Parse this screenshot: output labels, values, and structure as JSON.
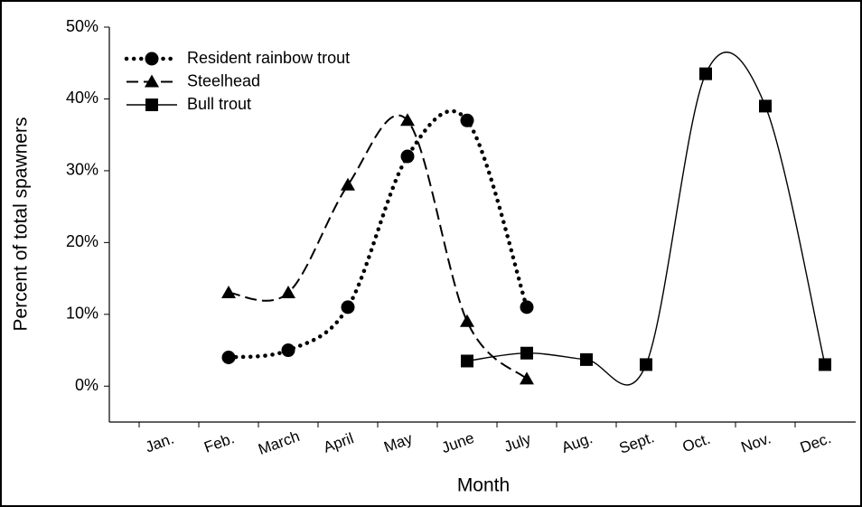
{
  "chart_data": {
    "type": "line",
    "x_label": "Month",
    "y_label": "Percent of total spawners",
    "categories": [
      "Jan.",
      "Feb.",
      "March",
      "April",
      "May",
      "June",
      "July",
      "Aug.",
      "Sept.",
      "Oct.",
      "Nov.",
      "Dec."
    ],
    "series": [
      {
        "name": "Resident rainbow trout",
        "color": "#000000",
        "line_style": "dotted",
        "marker": "circle",
        "values": [
          null,
          4,
          5,
          11,
          32,
          37,
          11,
          null,
          null,
          null,
          null,
          null
        ]
      },
      {
        "name": "Steelhead",
        "color": "#000000",
        "line_style": "dashed",
        "marker": "triangle",
        "values": [
          null,
          13,
          13,
          28,
          37,
          9,
          1,
          null,
          null,
          null,
          null,
          null
        ]
      },
      {
        "name": "Bull trout",
        "color": "#000000",
        "line_style": "solid",
        "marker": "square",
        "values": [
          null,
          null,
          null,
          null,
          null,
          3.5,
          4.6,
          3.7,
          3,
          43.5,
          39,
          3
        ]
      }
    ],
    "ylim": [
      -5,
      50
    ],
    "yticks": [
      {
        "value": 0,
        "label": "0%"
      },
      {
        "value": 10,
        "label": "10%"
      },
      {
        "value": 20,
        "label": "20%"
      },
      {
        "value": 30,
        "label": "30%"
      },
      {
        "value": 40,
        "label": "40%"
      },
      {
        "value": 50,
        "label": "50%"
      }
    ],
    "smooth": true,
    "legend": "top-left"
  }
}
